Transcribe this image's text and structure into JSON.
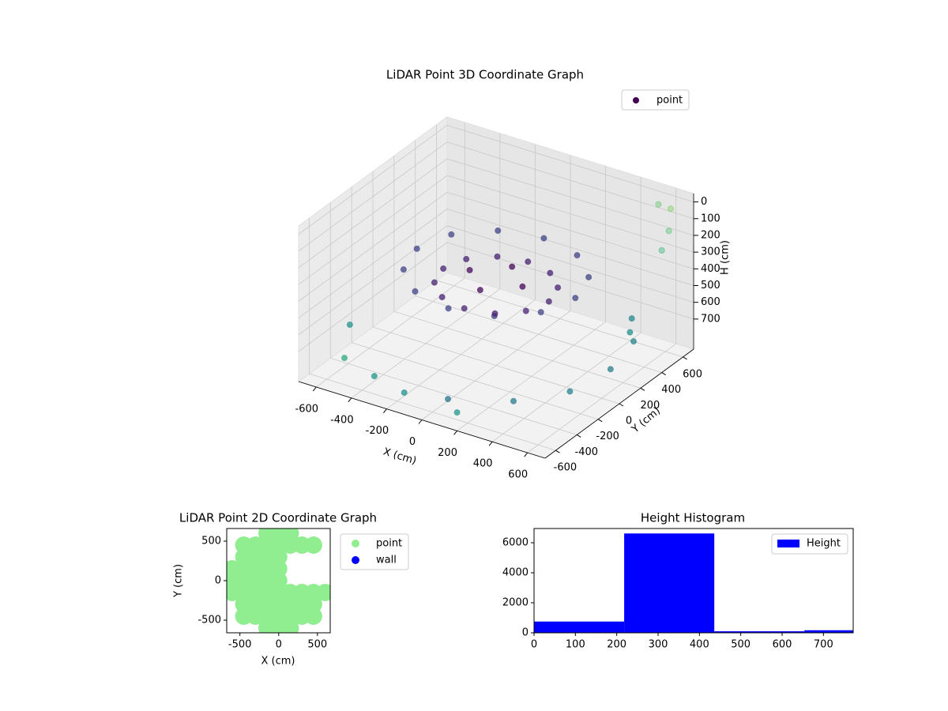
{
  "chart_data": [
    {
      "type": "scatter3d",
      "title": "LiDAR Point 3D Coordinate Graph",
      "xlabel": "X (cm)",
      "ylabel": "Y (cm)",
      "zlabel": "H (cm)",
      "xlim": [
        -700,
        700
      ],
      "ylim": [
        -700,
        700
      ],
      "zlim": [
        880,
        -50
      ],
      "xticks": [
        -600,
        -400,
        -200,
        0,
        200,
        400,
        600
      ],
      "yticks": [
        -600,
        -400,
        -200,
        0,
        200,
        400,
        600
      ],
      "zticks": [
        0,
        100,
        200,
        300,
        400,
        500,
        600,
        700
      ],
      "colormap": "viridis",
      "grid": true,
      "legend": "upper right",
      "series": [
        {
          "name": "point",
          "x": [
            450,
            390,
            225,
            0,
            -225,
            -390,
            -450,
            -390,
            -225,
            0,
            225,
            390,
            300,
            260,
            150,
            0,
            -150,
            -260,
            -300,
            -260,
            -150,
            0,
            150,
            260,
            150,
            0,
            -150,
            0,
            -500,
            -300,
            100,
            400,
            600,
            650,
            600,
            -650,
            200,
            -100,
            600,
            500,
            650,
            700,
            650,
            700
          ],
          "y": [
            0,
            225,
            390,
            450,
            390,
            225,
            0,
            -225,
            -390,
            -450,
            -390,
            -225,
            0,
            150,
            260,
            300,
            260,
            150,
            0,
            -150,
            -260,
            -300,
            -260,
            -150,
            0,
            150,
            0,
            -150,
            -600,
            -650,
            -620,
            -500,
            -300,
            0,
            300,
            -300,
            -700,
            -700,
            650,
            700,
            550,
            400,
            200,
            100
          ],
          "z": [
            330,
            330,
            330,
            330,
            330,
            330,
            330,
            330,
            330,
            330,
            330,
            330,
            400,
            400,
            400,
            400,
            400,
            400,
            400,
            400,
            400,
            400,
            400,
            400,
            360,
            360,
            360,
            360,
            720,
            740,
            760,
            730,
            700,
            690,
            680,
            710,
            770,
            750,
            50,
            80,
            120,
            150,
            480,
            500
          ]
        }
      ]
    },
    {
      "type": "scatter",
      "title": "LiDAR Point 2D Coordinate Graph",
      "xlabel": "X (cm)",
      "ylabel": "Y (cm)",
      "xlim": [
        -670,
        665
      ],
      "ylim": [
        -660,
        660
      ],
      "xticks": [
        -500,
        0,
        500
      ],
      "yticks": [
        -500,
        0,
        500
      ],
      "legend": "outside right",
      "series": [
        {
          "name": "point",
          "color": "#90ee90",
          "x": [
            -150,
            0,
            150,
            -450,
            -300,
            -150,
            0,
            150,
            300,
            450,
            -450,
            -300,
            -150,
            0,
            -600,
            -450,
            -300,
            -150,
            0,
            -600,
            -450,
            -300,
            -150,
            0,
            -600,
            -450,
            -300,
            -150,
            0,
            150,
            300,
            450,
            600,
            -450,
            -300,
            -150,
            0,
            150,
            300,
            450,
            -450,
            -300,
            -150,
            0,
            150,
            300,
            450,
            -150,
            0,
            150
          ],
          "y": [
            600,
            600,
            600,
            450,
            450,
            450,
            450,
            450,
            450,
            450,
            300,
            300,
            300,
            300,
            150,
            150,
            150,
            150,
            150,
            0,
            0,
            0,
            0,
            0,
            -150,
            -150,
            -150,
            -150,
            -150,
            -150,
            -150,
            -150,
            -150,
            -300,
            -300,
            -300,
            -300,
            -300,
            -300,
            -300,
            -450,
            -450,
            -450,
            -450,
            -450,
            -450,
            -450,
            -600,
            -600,
            -600
          ]
        },
        {
          "name": "wall",
          "color": "#0000ff",
          "x": [],
          "y": []
        }
      ]
    },
    {
      "type": "histogram",
      "title": "Height Histogram",
      "bins": [
        0,
        218,
        436,
        654,
        872
      ],
      "xlim": [
        0,
        772
      ],
      "ylim": [
        0,
        6950
      ],
      "xticks": [
        0,
        100,
        200,
        300,
        400,
        500,
        600,
        700
      ],
      "yticks": [
        0,
        2000,
        4000,
        6000
      ],
      "legend": "upper right",
      "series": [
        {
          "name": "Height",
          "color": "#0000ff",
          "values": [
            750,
            6620,
            100,
            170
          ]
        }
      ]
    }
  ]
}
